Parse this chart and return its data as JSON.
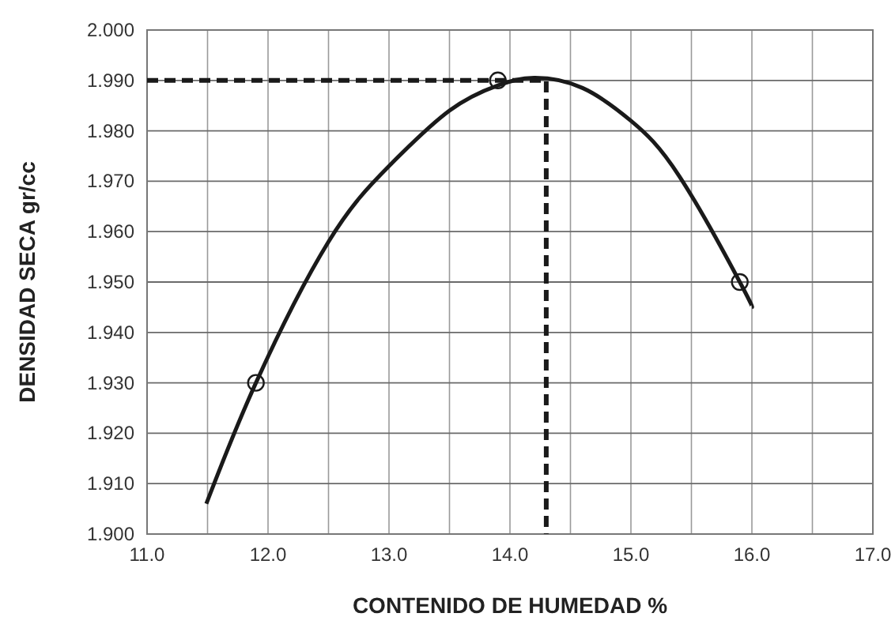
{
  "chart_data": {
    "type": "line",
    "xlabel": "CONTENIDO DE HUMEDAD %",
    "ylabel": "DENSIDAD SECA gr/cc",
    "xlim": [
      11,
      17
    ],
    "ylim": [
      1.9,
      2.0
    ],
    "xticks": [
      {
        "value": 11,
        "label": "11.0"
      },
      {
        "value": 11.5,
        "label": null
      },
      {
        "value": 12,
        "label": "12.0"
      },
      {
        "value": 12.5,
        "label": null
      },
      {
        "value": 13,
        "label": "13.0"
      },
      {
        "value": 13.5,
        "label": null
      },
      {
        "value": 14,
        "label": "14.0"
      },
      {
        "value": 14.5,
        "label": null
      },
      {
        "value": 15,
        "label": "15.0"
      },
      {
        "value": 15.5,
        "label": null
      },
      {
        "value": 16,
        "label": "16.0"
      },
      {
        "value": 16.5,
        "label": null
      },
      {
        "value": 17,
        "label": "17.0"
      }
    ],
    "yticks": [
      {
        "value": 1.9,
        "label": "1.900"
      },
      {
        "value": 1.91,
        "label": "1.910"
      },
      {
        "value": 1.92,
        "label": "1.920"
      },
      {
        "value": 1.93,
        "label": "1.930"
      },
      {
        "value": 1.94,
        "label": "1.940"
      },
      {
        "value": 1.95,
        "label": "1.950"
      },
      {
        "value": 1.96,
        "label": "1.960"
      },
      {
        "value": 1.97,
        "label": "1.970"
      },
      {
        "value": 1.98,
        "label": "1.980"
      },
      {
        "value": 1.99,
        "label": "1.990"
      },
      {
        "value": 2.0,
        "label": "2.000"
      }
    ],
    "grid": true,
    "series": [
      {
        "color": "#1a1a1a",
        "line_style": "solid",
        "marker": "none",
        "x": [
          11.49,
          11.9,
          12.5,
          13.0,
          13.5,
          13.9,
          14.2,
          14.6,
          15.0,
          15.4,
          15.9,
          16.0
        ],
        "values": [
          1.906,
          1.93,
          1.958,
          1.973,
          1.984,
          1.989,
          1.9905,
          1.9885,
          1.982,
          1.971,
          1.95,
          1.945
        ]
      },
      {
        "type": "scatter",
        "color": "#1a1a1a",
        "marker": "circle",
        "x": [
          11.9,
          13.9,
          15.9
        ],
        "values": [
          1.93,
          1.99,
          1.95
        ]
      },
      {
        "type": "line",
        "color": "#1a1a1a",
        "line_style": "dashed",
        "marker": "none",
        "x": [
          11,
          14.3,
          14.3
        ],
        "values": [
          1.99,
          1.99,
          1.9
        ]
      }
    ]
  }
}
